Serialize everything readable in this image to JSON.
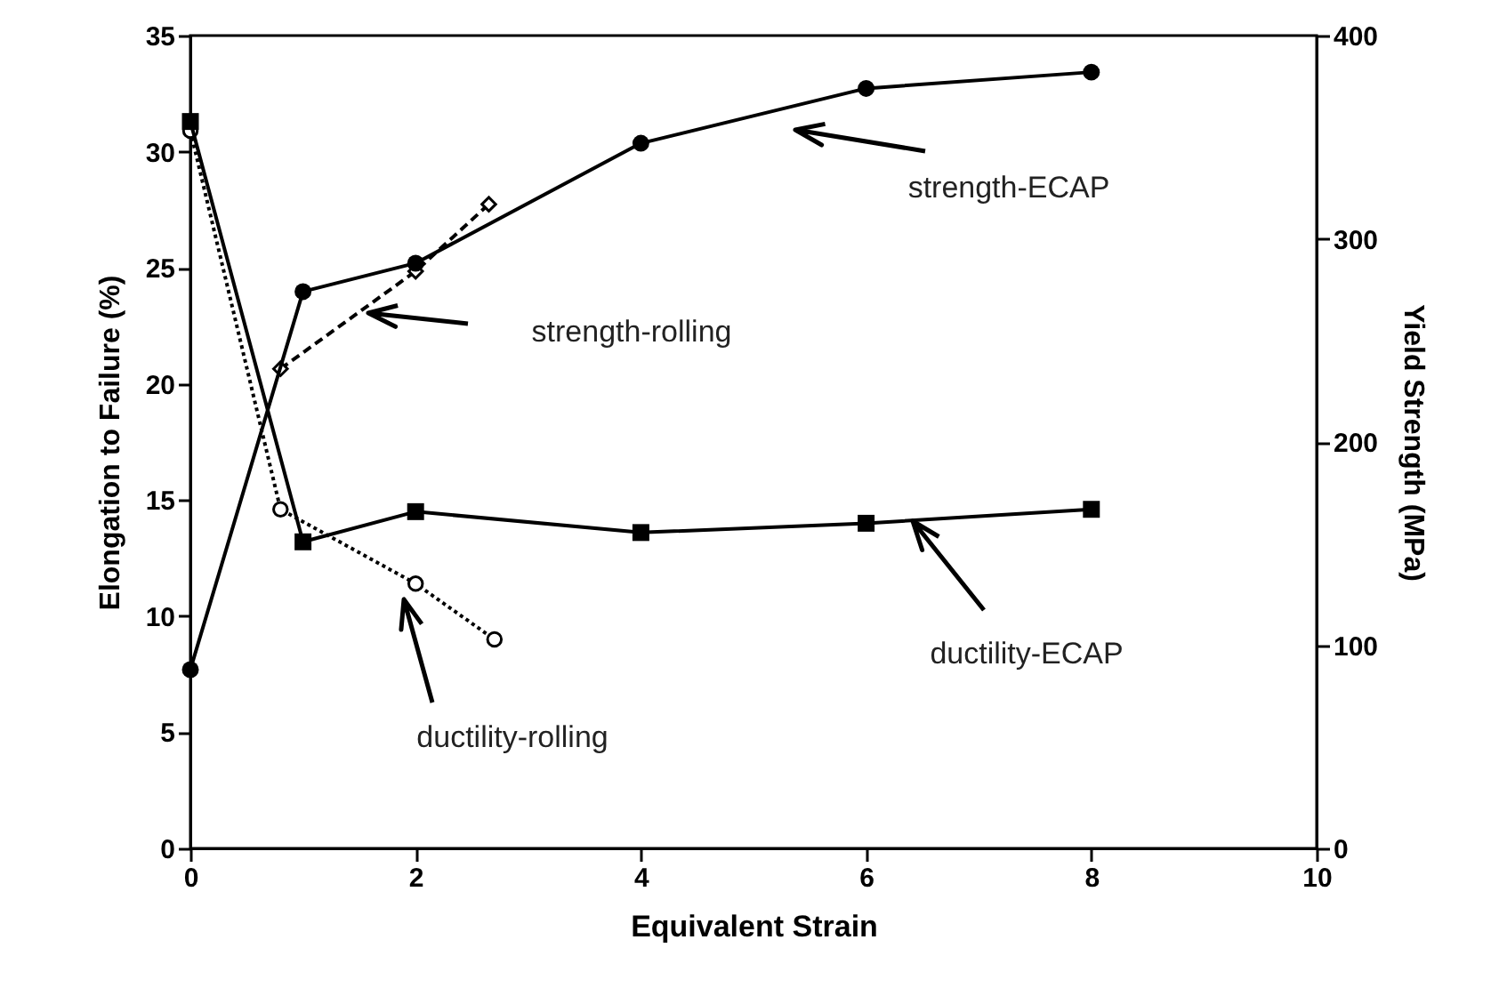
{
  "chart_data": {
    "type": "line",
    "xlabel": "Equivalent Strain",
    "ylabel": "Elongation to Failure (%)",
    "y2label": "Yield Strength (MPa)",
    "xlim": [
      0,
      10
    ],
    "xticks": [
      0,
      2,
      4,
      6,
      8,
      10
    ],
    "ylim": [
      0,
      35
    ],
    "yticks": [
      0,
      5,
      10,
      15,
      20,
      25,
      30,
      35
    ],
    "y2lim": [
      0,
      400
    ],
    "y2ticks": [
      0,
      100,
      200,
      300,
      400
    ],
    "grid": false,
    "series": [
      {
        "color": "#000000",
        "axis": "y2",
        "marker": "diamond",
        "line_style": "dashed",
        "x": [
          0.8,
          2,
          2.65
        ],
        "values": [
          236,
          284,
          317
        ]
      },
      {
        "color": "#000000",
        "axis": "y",
        "marker": "circle",
        "line_style": "dotted",
        "x": [
          0,
          0.8,
          2,
          2.7
        ],
        "values": [
          30.9,
          14.6,
          11.4,
          9.0
        ]
      },
      {
        "color": "#000000",
        "axis": "y2",
        "marker": "circle",
        "line_style": "solid",
        "x": [
          0,
          1,
          2,
          4,
          6,
          8
        ],
        "values": [
          88,
          274,
          288,
          347,
          374,
          382
        ]
      },
      {
        "color": "#000000",
        "axis": "y",
        "marker": "square",
        "line_style": "solid",
        "x": [
          0,
          1,
          2,
          4,
          6,
          8
        ],
        "values": [
          31.3,
          13.2,
          14.5,
          13.6,
          14.0,
          14.6
        ]
      }
    ],
    "annotations": [
      "strength-ECAP",
      "strength-rolling",
      "ductility-rolling",
      "ductility-ECAP"
    ]
  }
}
